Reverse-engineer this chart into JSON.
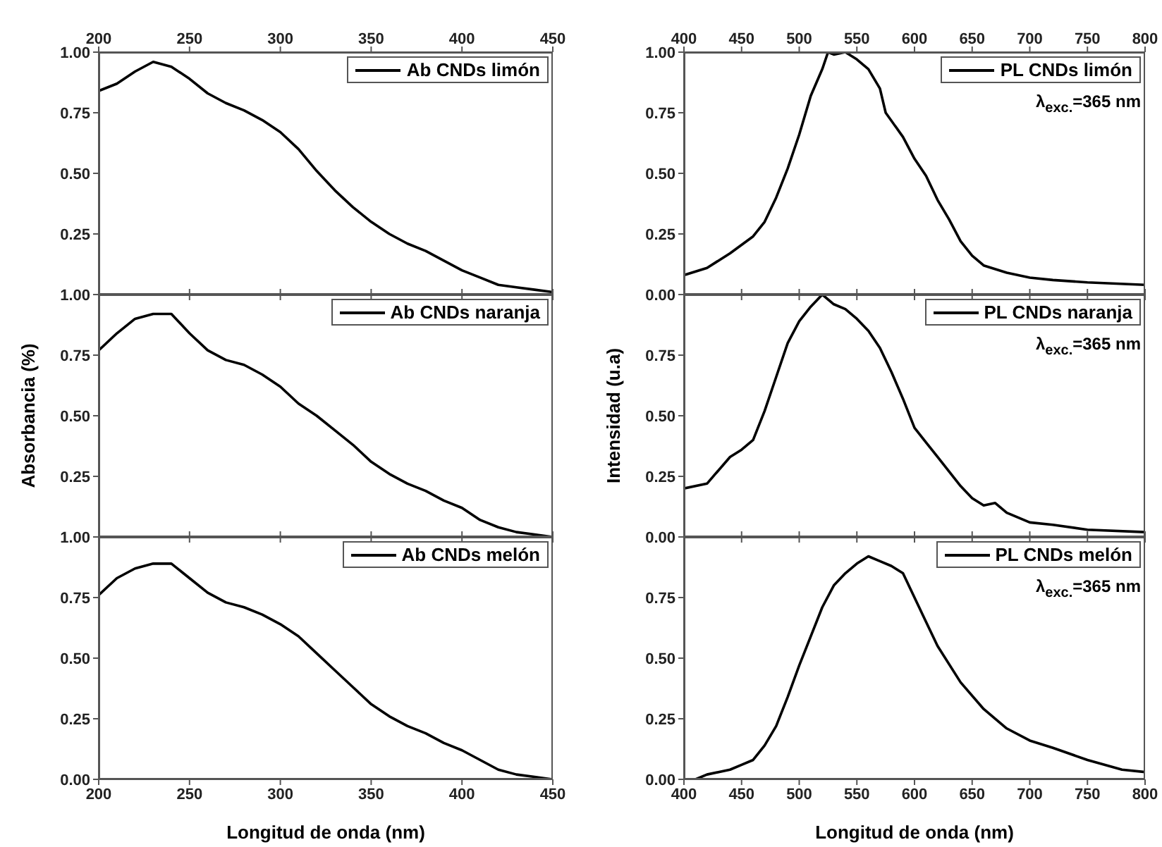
{
  "chart_data": [
    {
      "type": "line",
      "legend": "top right",
      "xlim": [
        200,
        450
      ],
      "xticks": [
        200,
        250,
        300,
        350,
        400,
        450
      ],
      "ylim": [
        0,
        1
      ],
      "yticks": [
        {
          "value": 0,
          "label": null
        },
        {
          "value": 0.25,
          "label": "0.25"
        },
        {
          "value": 0.5,
          "label": "0.50"
        },
        {
          "value": 0.75,
          "label": "0.75"
        },
        {
          "value": 1,
          "label": "1.00"
        }
      ],
      "x": [
        200,
        210,
        220,
        230,
        240,
        250,
        260,
        270,
        280,
        290,
        300,
        310,
        320,
        330,
        340,
        350,
        360,
        370,
        380,
        390,
        400,
        410,
        420,
        430,
        440,
        450
      ],
      "series": [
        {
          "name": "Ab CNDs limón",
          "color": "#000000",
          "values": [
            0.84,
            0.87,
            0.92,
            0.96,
            0.94,
            0.89,
            0.83,
            0.79,
            0.76,
            0.72,
            0.67,
            0.6,
            0.51,
            0.43,
            0.36,
            0.3,
            0.25,
            0.21,
            0.18,
            0.14,
            0.1,
            0.07,
            0.04,
            0.03,
            0.02,
            0.01
          ]
        }
      ]
    },
    {
      "type": "line",
      "legend": "top right",
      "annotations": [
        "λ$_{exc.}$=365 nm"
      ],
      "xlim": [
        400,
        800
      ],
      "xticks": [
        400,
        450,
        500,
        550,
        600,
        650,
        700,
        750,
        800
      ],
      "ylim": [
        0,
        1
      ],
      "yticks": [
        {
          "value": 0,
          "label": "0.00"
        },
        {
          "value": 0.25,
          "label": "0.25"
        },
        {
          "value": 0.5,
          "label": "0.50"
        },
        {
          "value": 0.75,
          "label": "0.75"
        },
        {
          "value": 1,
          "label": "1.00"
        }
      ],
      "x": [
        400,
        420,
        440,
        460,
        470,
        480,
        490,
        500,
        510,
        520,
        525,
        530,
        540,
        550,
        560,
        570,
        575,
        590,
        600,
        610,
        620,
        630,
        640,
        650,
        660,
        680,
        700,
        720,
        750,
        800
      ],
      "series": [
        {
          "name": "PL CNDs limón",
          "color": "#000000",
          "values": [
            0.08,
            0.11,
            0.17,
            0.24,
            0.3,
            0.4,
            0.52,
            0.66,
            0.82,
            0.93,
            1.0,
            0.99,
            1.0,
            0.97,
            0.93,
            0.85,
            0.75,
            0.65,
            0.56,
            0.49,
            0.39,
            0.31,
            0.22,
            0.16,
            0.12,
            0.09,
            0.07,
            0.06,
            0.05,
            0.04
          ]
        }
      ]
    },
    {
      "type": "line",
      "legend": "top right",
      "ylabel": "Absorbancia (%)",
      "tick_labels": "y",
      "xlim": [
        200,
        450
      ],
      "xticks": [
        200,
        250,
        300,
        350,
        400,
        450
      ],
      "ylim": [
        0,
        1
      ],
      "yticks": [
        {
          "value": 0,
          "label": null
        },
        {
          "value": 0.25,
          "label": "0.25"
        },
        {
          "value": 0.5,
          "label": "0.50"
        },
        {
          "value": 0.75,
          "label": "0.75"
        },
        {
          "value": 1,
          "label": "1.00"
        }
      ],
      "x": [
        200,
        210,
        220,
        230,
        240,
        250,
        260,
        270,
        280,
        290,
        300,
        310,
        320,
        330,
        340,
        350,
        360,
        370,
        380,
        390,
        400,
        410,
        420,
        430,
        440,
        450
      ],
      "series": [
        {
          "name": "Ab CNDs naranja",
          "color": "#000000",
          "values": [
            0.77,
            0.84,
            0.9,
            0.92,
            0.92,
            0.84,
            0.77,
            0.73,
            0.71,
            0.67,
            0.62,
            0.55,
            0.5,
            0.44,
            0.38,
            0.31,
            0.26,
            0.22,
            0.19,
            0.15,
            0.12,
            0.07,
            0.04,
            0.02,
            0.01,
            0.0
          ]
        }
      ]
    },
    {
      "type": "line",
      "legend": "top right",
      "ylabel": "Intensidad (u.a)",
      "annotations": [
        "λ$_{exc.}$=365 nm"
      ],
      "tick_labels": "y",
      "xlim": [
        400,
        800
      ],
      "xticks": [
        400,
        450,
        500,
        550,
        600,
        650,
        700,
        750,
        800
      ],
      "ylim": [
        0,
        1
      ],
      "yticks": [
        {
          "value": 0,
          "label": "0.00"
        },
        {
          "value": 0.25,
          "label": "0.25"
        },
        {
          "value": 0.5,
          "label": "0.50"
        },
        {
          "value": 0.75,
          "label": "0.75"
        },
        {
          "value": 1,
          "label": null
        }
      ],
      "x": [
        400,
        420,
        440,
        450,
        460,
        470,
        480,
        490,
        500,
        510,
        520,
        530,
        540,
        550,
        560,
        570,
        580,
        590,
        600,
        610,
        620,
        630,
        640,
        650,
        660,
        670,
        680,
        700,
        720,
        750,
        800
      ],
      "series": [
        {
          "name": "PL CNDs naranja",
          "color": "#000000",
          "values": [
            0.2,
            0.22,
            0.33,
            0.36,
            0.4,
            0.52,
            0.66,
            0.8,
            0.89,
            0.95,
            1.0,
            0.96,
            0.94,
            0.9,
            0.85,
            0.78,
            0.68,
            0.57,
            0.45,
            0.39,
            0.33,
            0.27,
            0.21,
            0.16,
            0.13,
            0.14,
            0.1,
            0.06,
            0.05,
            0.03,
            0.02
          ]
        }
      ]
    },
    {
      "type": "line",
      "legend": "top right",
      "xlabel": "Longitud de onda (nm)",
      "xlim": [
        200,
        450
      ],
      "xticks": [
        200,
        250,
        300,
        350,
        400,
        450
      ],
      "ylim": [
        0,
        1
      ],
      "yticks": [
        {
          "value": 0,
          "label": "0.00"
        },
        {
          "value": 0.25,
          "label": "0.25"
        },
        {
          "value": 0.5,
          "label": "0.50"
        },
        {
          "value": 0.75,
          "label": "0.75"
        },
        {
          "value": 1,
          "label": "1.00"
        }
      ],
      "x": [
        200,
        210,
        220,
        230,
        240,
        250,
        260,
        270,
        280,
        290,
        300,
        310,
        320,
        330,
        340,
        350,
        360,
        370,
        380,
        390,
        400,
        410,
        420,
        430,
        440,
        450
      ],
      "series": [
        {
          "name": "Ab CNDs melón",
          "color": "#000000",
          "values": [
            0.76,
            0.83,
            0.87,
            0.89,
            0.89,
            0.83,
            0.77,
            0.73,
            0.71,
            0.68,
            0.64,
            0.59,
            0.52,
            0.45,
            0.38,
            0.31,
            0.26,
            0.22,
            0.19,
            0.15,
            0.12,
            0.08,
            0.04,
            0.02,
            0.01,
            0.0
          ]
        }
      ]
    },
    {
      "type": "line",
      "legend": "top right",
      "xlabel": "Longitud de onda (nm)",
      "annotations": [
        "λ$_{exc.}$=365 nm"
      ],
      "xlim": [
        400,
        800
      ],
      "xticks": [
        400,
        450,
        500,
        550,
        600,
        650,
        700,
        750,
        800
      ],
      "ylim": [
        0,
        1
      ],
      "yticks": [
        {
          "value": 0,
          "label": "0.00"
        },
        {
          "value": 0.25,
          "label": "0.25"
        },
        {
          "value": 0.5,
          "label": "0.50"
        },
        {
          "value": 0.75,
          "label": "0.75"
        },
        {
          "value": 1,
          "label": null
        }
      ],
      "x": [
        410,
        420,
        440,
        450,
        460,
        470,
        480,
        490,
        500,
        510,
        520,
        530,
        540,
        550,
        560,
        570,
        580,
        590,
        600,
        610,
        620,
        640,
        660,
        680,
        700,
        720,
        750,
        780,
        800
      ],
      "series": [
        {
          "name": "PL CNDs melón",
          "color": "#000000",
          "values": [
            0.0,
            0.02,
            0.04,
            0.06,
            0.08,
            0.14,
            0.22,
            0.34,
            0.47,
            0.59,
            0.71,
            0.8,
            0.85,
            0.89,
            0.92,
            0.9,
            0.88,
            0.85,
            0.75,
            0.65,
            0.55,
            0.4,
            0.29,
            0.21,
            0.16,
            0.13,
            0.08,
            0.04,
            0.03
          ]
        }
      ]
    }
  ]
}
